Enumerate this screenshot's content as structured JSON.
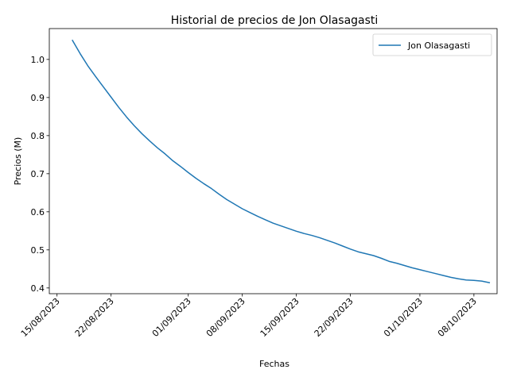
{
  "chart_data": {
    "type": "line",
    "title": "Historial de precios de Jon Olasagasti",
    "xlabel": "Fechas",
    "ylabel": "Precios (M)",
    "legend": "top-right",
    "grid": false,
    "xlim": [
      "2023-08-14",
      "2023-10-11"
    ],
    "ylim": [
      0.385,
      1.081
    ],
    "x_ticks": [
      "15/08/2023",
      "22/08/2023",
      "01/09/2023",
      "08/09/2023",
      "15/09/2023",
      "22/09/2023",
      "01/10/2023",
      "08/10/2023"
    ],
    "x_tick_dates": [
      "2023-08-15",
      "2023-08-22",
      "2023-09-01",
      "2023-09-08",
      "2023-09-15",
      "2023-09-22",
      "2023-10-01",
      "2023-10-08"
    ],
    "y_ticks": [
      "0.4",
      "0.5",
      "0.6",
      "0.7",
      "0.8",
      "0.9",
      "1.0"
    ],
    "y_tick_values": [
      0.4,
      0.5,
      0.6,
      0.7,
      0.8,
      0.9,
      1.0
    ],
    "series": [
      {
        "name": "Jon Olasagasti",
        "color": "#1f77b4",
        "x": [
          "2023-08-17",
          "2023-08-18",
          "2023-08-19",
          "2023-08-20",
          "2023-08-21",
          "2023-08-22",
          "2023-08-23",
          "2023-08-24",
          "2023-08-25",
          "2023-08-26",
          "2023-08-27",
          "2023-08-28",
          "2023-08-29",
          "2023-08-30",
          "2023-08-31",
          "2023-09-01",
          "2023-09-02",
          "2023-09-03",
          "2023-09-04",
          "2023-09-05",
          "2023-09-06",
          "2023-09-07",
          "2023-09-08",
          "2023-09-09",
          "2023-09-10",
          "2023-09-11",
          "2023-09-12",
          "2023-09-13",
          "2023-09-14",
          "2023-09-15",
          "2023-09-16",
          "2023-09-17",
          "2023-09-18",
          "2023-09-19",
          "2023-09-20",
          "2023-09-21",
          "2023-09-22",
          "2023-09-23",
          "2023-09-24",
          "2023-09-25",
          "2023-09-26",
          "2023-09-27",
          "2023-09-28",
          "2023-09-29",
          "2023-09-30",
          "2023-10-01",
          "2023-10-02",
          "2023-10-03",
          "2023-10-04",
          "2023-10-05",
          "2023-10-06",
          "2023-10-07",
          "2023-10-08",
          "2023-10-09",
          "2023-10-10"
        ],
        "values": [
          1.05,
          1.015,
          0.983,
          0.955,
          0.928,
          0.901,
          0.874,
          0.849,
          0.826,
          0.805,
          0.786,
          0.768,
          0.752,
          0.734,
          0.719,
          0.703,
          0.688,
          0.674,
          0.661,
          0.646,
          0.632,
          0.62,
          0.608,
          0.598,
          0.588,
          0.579,
          0.57,
          0.563,
          0.556,
          0.549,
          0.543,
          0.538,
          0.532,
          0.525,
          0.518,
          0.51,
          0.502,
          0.495,
          0.49,
          0.485,
          0.478,
          0.47,
          0.465,
          0.459,
          0.453,
          0.448,
          0.443,
          0.438,
          0.433,
          0.428,
          0.424,
          0.421,
          0.42,
          0.418,
          0.414
        ]
      }
    ]
  }
}
